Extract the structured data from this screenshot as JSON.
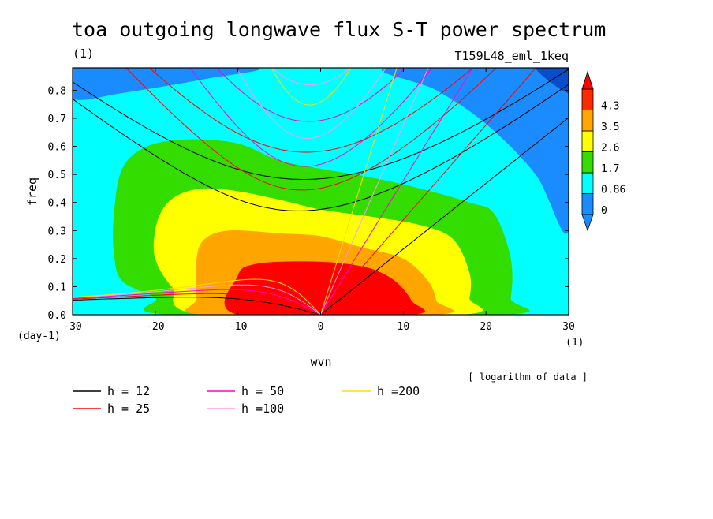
{
  "chart_data": {
    "type": "contour",
    "title": "toa outgoing longwave flux S-T power spectrum",
    "subtitle_left": "(1)",
    "subtitle_right": "T159L48_eml_1keq",
    "xlabel": "wvn",
    "ylabel": "freq",
    "x_unit": "(1)",
    "y_unit": "(day-1)",
    "xlim": [
      -30,
      30
    ],
    "ylim": [
      0,
      0.88
    ],
    "xticks": [
      -30,
      -20,
      -10,
      0,
      10,
      20,
      30
    ],
    "yticks": [
      0.0,
      0.1,
      0.2,
      0.3,
      0.4,
      0.5,
      0.6,
      0.7,
      0.8
    ],
    "ytick_labels": [
      "0.0",
      "0.1",
      "0.2",
      "0.3",
      "0.4",
      "0.5",
      "0.6",
      "0.7",
      "0.8"
    ],
    "note": "[ logarithm of data ]",
    "colorbar": {
      "levels": [
        "0",
        "0.86",
        "1.7",
        "2.6",
        "3.5",
        "4.3"
      ],
      "colors": [
        "#1a8cff",
        "#00ffff",
        "#33dd00",
        "#ffff00",
        "#ffa500",
        "#ff2a00"
      ],
      "below_color": "#1a8cff",
      "above_color": "#ff0000"
    },
    "fill_regions": [
      {
        "level": "below 0",
        "color": "#1a8cff",
        "points": [
          [
            -30,
            0.88
          ],
          [
            -8,
            0.88
          ],
          [
            -14,
            0.84
          ],
          [
            -24,
            0.79
          ],
          [
            -30,
            0.77
          ]
        ]
      },
      {
        "level": "below 0",
        "color": "#1a8cff",
        "points": [
          [
            8,
            0.88
          ],
          [
            30,
            0.88
          ],
          [
            30,
            0.3
          ],
          [
            26,
            0.5
          ],
          [
            20,
            0.68
          ],
          [
            14,
            0.8
          ]
        ]
      },
      {
        "level": "below 0",
        "color": "#0a4dcc",
        "points": [
          [
            26,
            0.88
          ],
          [
            30,
            0.88
          ],
          [
            30,
            0.79
          ]
        ]
      },
      {
        "level": "0.86-1.7",
        "color": "#33dd00",
        "points": [
          [
            -25,
            0.36
          ],
          [
            -24,
            0.52
          ],
          [
            -21,
            0.6
          ],
          [
            -16,
            0.625
          ],
          [
            -10,
            0.61
          ],
          [
            -5,
            0.55
          ],
          [
            0,
            0.52
          ],
          [
            6,
            0.49
          ],
          [
            12,
            0.45
          ],
          [
            18,
            0.4
          ],
          [
            21,
            0.36
          ],
          [
            23,
            0.2
          ],
          [
            23,
            0.06
          ],
          [
            22,
            0.0
          ],
          [
            -18,
            0.0
          ],
          [
            -20,
            0.06
          ],
          [
            -24,
            0.12
          ],
          [
            -25,
            0.22
          ]
        ]
      },
      {
        "level": "1.7-2.6",
        "color": "#ffff00",
        "points": [
          [
            -20,
            0.3
          ],
          [
            -19,
            0.38
          ],
          [
            -17,
            0.43
          ],
          [
            -14,
            0.45
          ],
          [
            -10,
            0.44
          ],
          [
            -5,
            0.41
          ],
          [
            0,
            0.375
          ],
          [
            6,
            0.35
          ],
          [
            12,
            0.32
          ],
          [
            16,
            0.27
          ],
          [
            18,
            0.15
          ],
          [
            18,
            0.06
          ],
          [
            17,
            0.0
          ],
          [
            -14,
            0.0
          ],
          [
            -18,
            0.1
          ],
          [
            -20,
            0.2
          ]
        ]
      },
      {
        "level": "2.6-3.5",
        "color": "#ffa500",
        "points": [
          [
            -15,
            0.2
          ],
          [
            -14,
            0.27
          ],
          [
            -11,
            0.3
          ],
          [
            -5,
            0.29
          ],
          [
            0,
            0.28
          ],
          [
            5,
            0.24
          ],
          [
            10,
            0.2
          ],
          [
            13,
            0.12
          ],
          [
            14,
            0.05
          ],
          [
            14,
            0.0
          ],
          [
            -14,
            0.0
          ],
          [
            -15,
            0.06
          ]
        ]
      },
      {
        "level": "3.5-4.3",
        "color": "#ff0000",
        "points": [
          [
            -10,
            0.14
          ],
          [
            -8,
            0.18
          ],
          [
            -3,
            0.19
          ],
          [
            2,
            0.185
          ],
          [
            6,
            0.165
          ],
          [
            9,
            0.12
          ],
          [
            11,
            0.05
          ],
          [
            11,
            0.0
          ],
          [
            -10,
            0.0
          ]
        ]
      }
    ],
    "series": [
      {
        "name": "h = 12",
        "color": "#000000",
        "depth": 12
      },
      {
        "name": "h = 25",
        "color": "#ff0000",
        "depth": 25
      },
      {
        "name": "h = 50",
        "color": "#ff00cc",
        "depth": 50
      },
      {
        "name": "h =100",
        "color": "#ff99ee",
        "depth": 100
      },
      {
        "name": "h =200",
        "color": "#ffdd00",
        "depth": 200
      }
    ]
  }
}
